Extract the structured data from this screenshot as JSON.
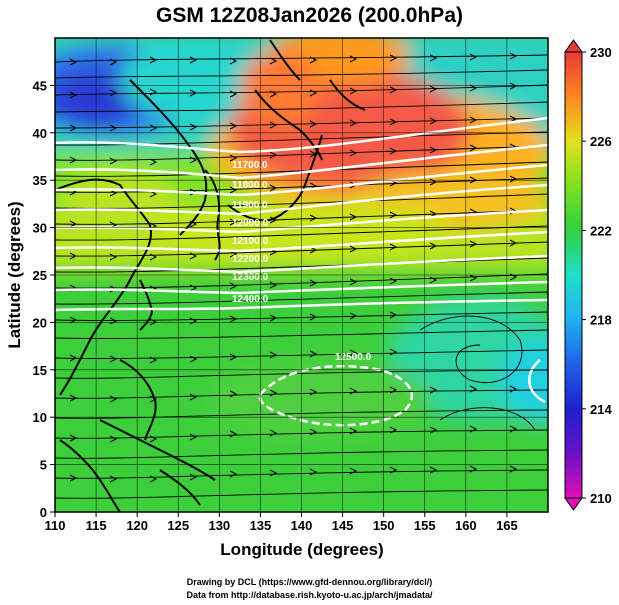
{
  "title": "GSM 12Z08Jan2026 (200.0hPa)",
  "x_axis": {
    "label": "Longitude (degrees)",
    "min": 110,
    "max": 170,
    "ticks": [
      110,
      115,
      120,
      125,
      130,
      135,
      140,
      145,
      150,
      155,
      160,
      165
    ]
  },
  "y_axis": {
    "label": "Latitude  (degrees)",
    "min": 0,
    "max": 50,
    "ticks": [
      0,
      5,
      10,
      15,
      20,
      25,
      30,
      35,
      40,
      45
    ]
  },
  "colorbar": {
    "min": 210,
    "max": 230,
    "ticks": [
      210,
      214,
      218,
      222,
      226,
      230
    ],
    "colors": [
      "#d80cb4",
      "#2a1cc8",
      "#1f8ef0",
      "#1fe6e0",
      "#33cc33",
      "#b8e61a",
      "#ffd21a",
      "#ff6a1a",
      "#e83a3a"
    ]
  },
  "fill_colors": {
    "deep_blue": "#2a3ad8",
    "blue": "#2d7bf0",
    "cyan": "#25d7d0",
    "teal": "#1fd3a0",
    "green": "#3ccf3a",
    "light_green": "#7ee22a",
    "yellow_green": "#c7e61a",
    "orange": "#ff9a1a",
    "red": "#f05050"
  },
  "contour_labels": [
    "11700.0",
    "11800.0",
    "11900.0",
    "12000.0",
    "12100.0",
    "12200.0",
    "12300.0",
    "12400.0",
    "12500.0"
  ],
  "credits": {
    "line1": "Drawing by DCL (https://www.gfd-dennou.org/library/dcl/)",
    "line2": "Data from http://database.rish.kyoto-u.ac.jp/arch/jmadata/"
  }
}
